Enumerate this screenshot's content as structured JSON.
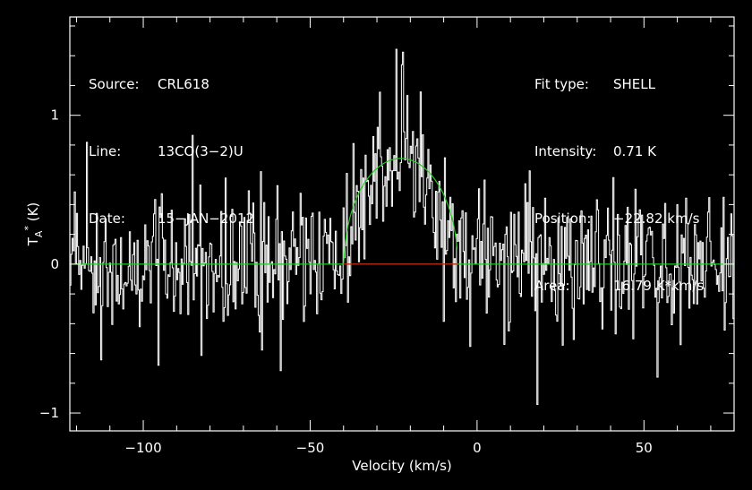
{
  "header_left": [
    {
      "key": "Source:",
      "value": "CRL618"
    },
    {
      "key": "Line:",
      "value": "13CO(3-2)U"
    },
    {
      "key": "Date:",
      "value": "15-JAN-2012"
    }
  ],
  "header_right": [
    {
      "key": "Fit type:",
      "value": "SHELL"
    },
    {
      "key": "Intensity:",
      "value": "0.71 K"
    },
    {
      "key": "Position:",
      "value": "-22.82 km/s"
    },
    {
      "key": "Area:",
      "value": "16.79 K*km/s"
    }
  ],
  "colors": {
    "background": "#000000",
    "spectrum": "#ffffff",
    "fit": "#22cc22",
    "baseline": "#22cc22",
    "baseline_fit_range": "#dd1111"
  },
  "chart_data": {
    "type": "line",
    "xlabel": "Velocity (km/s)",
    "ylabel": "T_A* (K)",
    "xlim": [
      -122,
      77
    ],
    "ylim": [
      -1.12,
      1.66
    ],
    "xticks": [
      -100,
      -50,
      0,
      50
    ],
    "xtick_labels": [
      "-100",
      "-50",
      "0",
      "50"
    ],
    "yticks": [
      -1,
      0,
      1
    ],
    "ytick_labels": [
      "-1",
      "0",
      "1"
    ],
    "grid": false,
    "series": [
      {
        "kind": "spectrum",
        "channel_width_kms": 0.33,
        "noise_rms_K": 0.25,
        "description_points": {
          "x": [
            -122,
            -100,
            -80,
            -60,
            -45,
            -40,
            -35,
            -30,
            -25,
            -22.8,
            -20,
            -15,
            -10,
            -7,
            -5,
            0,
            20,
            40,
            60,
            77
          ],
          "y": [
            0.05,
            0.0,
            0.0,
            0.0,
            0.0,
            0.05,
            0.35,
            0.6,
            0.75,
            0.8,
            0.75,
            0.6,
            0.35,
            0.1,
            0.0,
            0.0,
            0.0,
            0.0,
            0.0,
            0.0
          ]
        }
      },
      {
        "kind": "fit",
        "model": "SHELL",
        "center_kms": -22.82,
        "peak_K": 0.71,
        "area_Kkms": 16.79,
        "x_range": [
          -40,
          -6
        ]
      },
      {
        "kind": "baseline",
        "y": 0,
        "red_range": [
          -40,
          -6
        ]
      }
    ]
  }
}
